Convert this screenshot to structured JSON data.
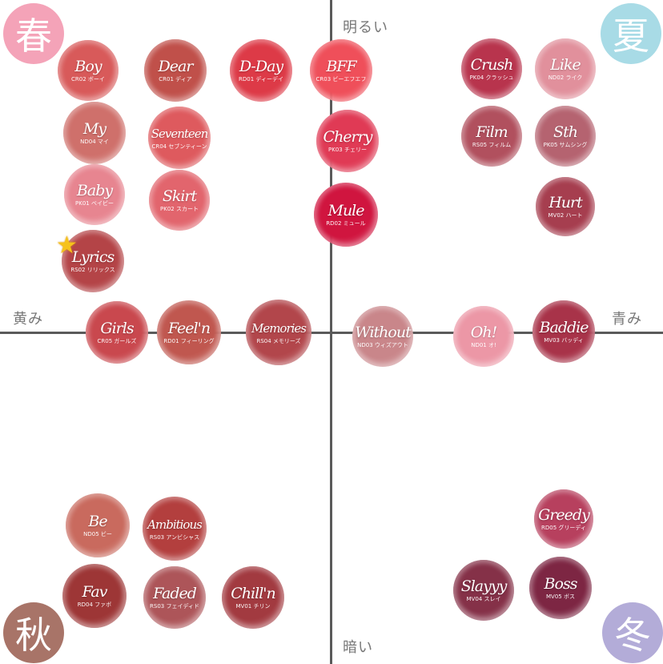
{
  "axes": {
    "top": "明るい",
    "bottom": "暗い",
    "left": "黄み",
    "right": "青み"
  },
  "seasons": {
    "spring": {
      "label": "春",
      "color": "#f4a3b8"
    },
    "summer": {
      "label": "夏",
      "color": "#a8dbe6"
    },
    "autumn": {
      "label": "秋",
      "color": "#a87468"
    },
    "winter": {
      "label": "冬",
      "color": "#b3acd8"
    }
  },
  "favorite": {
    "icon": "star-icon",
    "glyph": "★"
  },
  "swatches": [
    {
      "name": "Boy",
      "code": "CR02 ボーイ",
      "color": "#d85a5a"
    },
    {
      "name": "Dear",
      "code": "CR01 ディア",
      "color": "#c0504a"
    },
    {
      "name": "D-Day",
      "code": "RD01 ディーデイ",
      "color": "#dd3a47"
    },
    {
      "name": "BFF",
      "code": "CR03 ビーエフエフ",
      "color": "#ef4f5a"
    },
    {
      "name": "My",
      "code": "ND04 マイ",
      "color": "#cf706b"
    },
    {
      "name": "Seventeen",
      "code": "CR04 セブンティーン",
      "color": "#de5a5e"
    },
    {
      "name": "Cherry",
      "code": "PK03 チェリー",
      "color": "#e03a55"
    },
    {
      "name": "Baby",
      "code": "PK01 ベイビー",
      "color": "#e78590"
    },
    {
      "name": "Skirt",
      "code": "PK02 スカート",
      "color": "#e2656d"
    },
    {
      "name": "Mule",
      "code": "RD02 ミュール",
      "color": "#d0153f"
    },
    {
      "name": "Lyrics",
      "code": "RS02 リリックス",
      "color": "#b44447"
    },
    {
      "name": "Crush",
      "code": "PK04 クラッシュ",
      "color": "#b8344d"
    },
    {
      "name": "Like",
      "code": "ND02 ライク",
      "color": "#e1909c"
    },
    {
      "name": "Film",
      "code": "RS05 フィルム",
      "color": "#b1505e"
    },
    {
      "name": "Sth",
      "code": "PK05 サムシング",
      "color": "#b56370"
    },
    {
      "name": "Hurt",
      "code": "MV02 ハート",
      "color": "#a63e4f"
    },
    {
      "name": "Girls",
      "code": "CR05 ガールズ",
      "color": "#c9484e"
    },
    {
      "name": "Feel'n",
      "code": "RD01 フィーリング",
      "color": "#c0574f"
    },
    {
      "name": "Memories",
      "code": "RS04 メモリーズ",
      "color": "#b2464b"
    },
    {
      "name": "Without",
      "code": "ND03 ウィズアウト",
      "color": "#c9868a"
    },
    {
      "name": "Oh!",
      "code": "ND01 オ!",
      "color": "#ec97a6"
    },
    {
      "name": "Baddie",
      "code": "MV03 バッディ",
      "color": "#a83349"
    },
    {
      "name": "Greedy",
      "code": "RD05 グリーディ",
      "color": "#b7405e"
    },
    {
      "name": "Be",
      "code": "ND05 ビー",
      "color": "#c96a5e"
    },
    {
      "name": "Ambitious",
      "code": "RS03 アンビシャス",
      "color": "#b33f3e"
    },
    {
      "name": "Slayyy",
      "code": "MV04 スレイ",
      "color": "#853148"
    },
    {
      "name": "Boss",
      "code": "MV05 ボス",
      "color": "#7d2643"
    },
    {
      "name": "Fav",
      "code": "RD04 ファボ",
      "color": "#9d3636"
    },
    {
      "name": "Faded",
      "code": "RS03 フェイディド",
      "color": "#ad5559"
    },
    {
      "name": "Chill'n",
      "code": "MV01 チリン",
      "color": "#a23a40"
    }
  ]
}
